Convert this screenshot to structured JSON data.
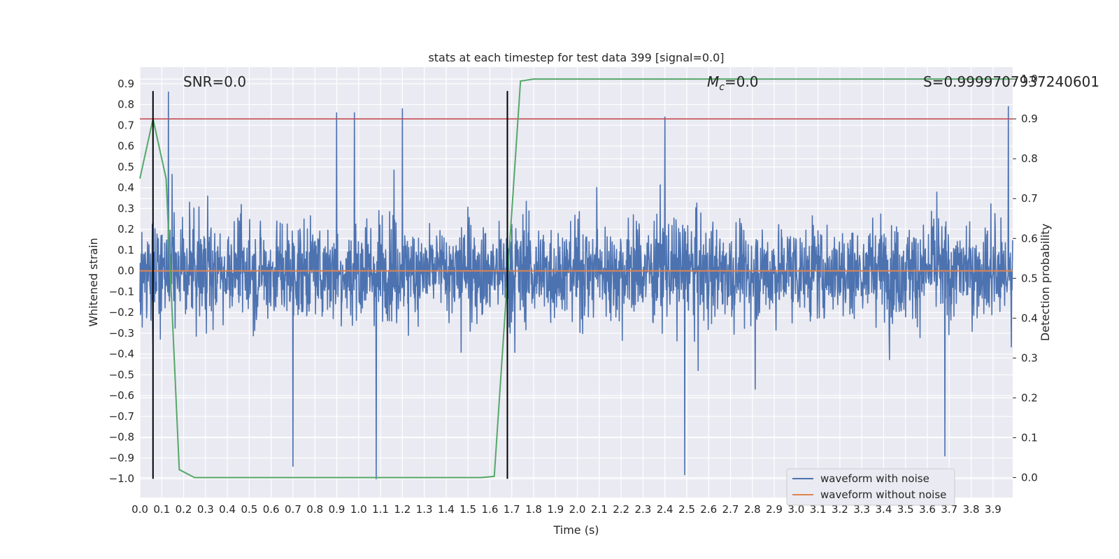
{
  "chart_data": {
    "type": "line",
    "title": "stats at each timestep for test data 399 [signal=0.0]",
    "xlabel": "Time (s)",
    "ylabel": "Whitened strain",
    "y2label": "Detection probability",
    "xlim": [
      0.0,
      3.99
    ],
    "ylim": [
      -1.09,
      0.98
    ],
    "y2lim": [
      -0.05,
      1.03
    ],
    "x_ticks": [
      0.0,
      0.1,
      0.2,
      0.3,
      0.4,
      0.5,
      0.6,
      0.7,
      0.8,
      0.9,
      1.0,
      1.1,
      1.2,
      1.3,
      1.4,
      1.5,
      1.6,
      1.7,
      1.8,
      1.9,
      2.0,
      2.1,
      2.2,
      2.3,
      2.4,
      2.5,
      2.6,
      2.7,
      2.8,
      2.9,
      3.0,
      3.1,
      3.2,
      3.3,
      3.4,
      3.5,
      3.6,
      3.7,
      3.8,
      3.9
    ],
    "x_tick_labels": [
      "0.0",
      "0.1",
      "0.2",
      "0.3",
      "0.4",
      "0.5",
      "0.6",
      "0.7",
      "0.8",
      "0.9",
      "1.0",
      "1.1",
      "1.2",
      "1.3",
      "1.4",
      "1.5",
      "1.6",
      "1.7",
      "1.8",
      "1.9",
      "2.0",
      "2.1",
      "2.2",
      "2.3",
      "2.4",
      "2.5",
      "2.6",
      "2.7",
      "2.8",
      "2.9",
      "3.0",
      "3.1",
      "3.2",
      "3.3",
      "3.4",
      "3.5",
      "3.6",
      "3.7",
      "3.8",
      "3.9"
    ],
    "y_ticks": [
      0.9,
      0.8,
      0.7,
      0.6,
      0.5,
      0.4,
      0.3,
      0.2,
      0.1,
      0.0,
      -0.1,
      -0.2,
      -0.3,
      -0.4,
      -0.5,
      -0.6,
      -0.7,
      -0.8,
      -0.9,
      -1.0
    ],
    "y_tick_labels": [
      "0.9",
      "0.8",
      "0.7",
      "0.6",
      "0.5",
      "0.4",
      "0.3",
      "0.2",
      "0.1",
      "0.0",
      "−0.1",
      "−0.2",
      "−0.3",
      "−0.4",
      "−0.5",
      "−0.6",
      "−0.7",
      "−0.8",
      "−0.9",
      "−1.0"
    ],
    "y2_ticks": [
      1.0,
      0.9,
      0.8,
      0.7,
      0.6,
      0.5,
      0.4,
      0.3,
      0.2,
      0.1,
      0.0
    ],
    "y2_tick_labels": [
      "1.0",
      "0.9",
      "0.8",
      "0.7",
      "0.6",
      "0.5",
      "0.4",
      "0.3",
      "0.2",
      "0.1",
      "0.0"
    ],
    "grid": true,
    "legend_position": "bottom-right",
    "series": [
      {
        "name": "waveform with noise",
        "color": "#4c72b0",
        "axis": "left",
        "kind": "noise",
        "x_range": [
          0.0,
          3.99
        ],
        "typical_envelope": [
          -0.45,
          0.5
        ],
        "extremes": [
          {
            "x": 0.13,
            "y": 0.86
          },
          {
            "x": 0.7,
            "y": -0.94
          },
          {
            "x": 0.9,
            "y": 0.76
          },
          {
            "x": 0.98,
            "y": 0.76
          },
          {
            "x": 1.08,
            "y": -1.0
          },
          {
            "x": 1.2,
            "y": 0.78
          },
          {
            "x": 2.4,
            "y": 0.74
          },
          {
            "x": 2.49,
            "y": -0.98
          },
          {
            "x": 3.68,
            "y": -0.89
          },
          {
            "x": 3.97,
            "y": 0.79
          }
        ]
      },
      {
        "name": "waveform without noise",
        "color": "#dd8452",
        "axis": "left",
        "x": [
          0.0,
          3.99
        ],
        "y": [
          0.0,
          0.0
        ]
      },
      {
        "name": "",
        "color": "#55a868",
        "axis": "right",
        "x": [
          0.0,
          0.06,
          0.12,
          0.18,
          0.25,
          0.5,
          1.0,
          1.5,
          1.56,
          1.62,
          1.68,
          1.74,
          1.8,
          2.5,
          3.99
        ],
        "y": [
          0.75,
          0.9,
          0.75,
          0.02,
          0.0,
          0.0,
          0.0,
          0.0,
          0.0,
          0.003,
          0.5,
          0.995,
          1.0,
          1.0,
          1.0
        ]
      }
    ],
    "threshold_line": {
      "axis": "right",
      "y": 0.9,
      "color": "#c44e52"
    },
    "vertical_lines": [
      {
        "x": 0.06,
        "y_from": -1.0,
        "y_to": 0.865,
        "color": "#000000"
      },
      {
        "x": 1.68,
        "y_from": -1.0,
        "y_to": 0.865,
        "color": "#000000"
      }
    ],
    "annotations": {
      "snr": "SNR=0.0",
      "mc_symbol": "M",
      "mc_subscript": "c",
      "mc_value": "=0.0",
      "s": "S=0.9999707937240601"
    },
    "colors": {
      "plot_background": "#eaeaf2",
      "grid": "#ffffff",
      "text": "#262626"
    }
  }
}
